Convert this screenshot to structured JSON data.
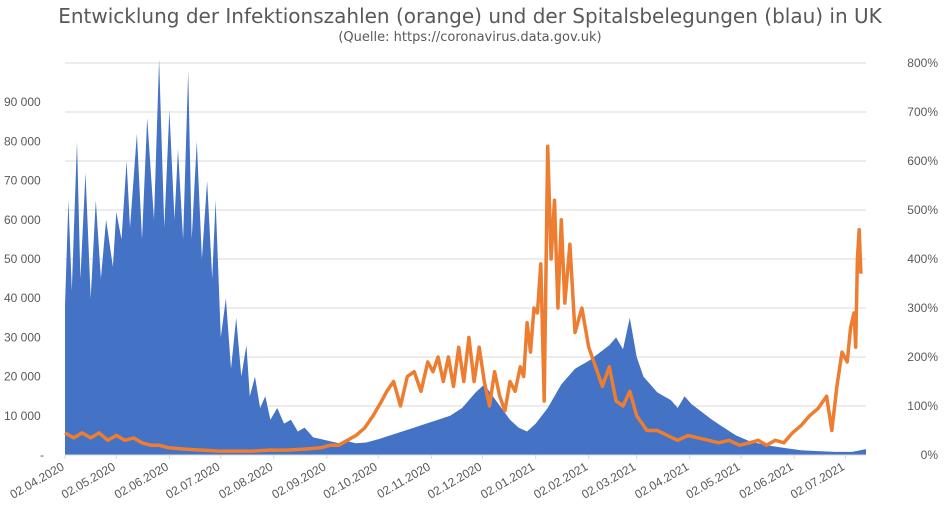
{
  "title": "Entwicklung der Infektionszahlen (orange) und der Spitalsbelegungen (blau) in UK",
  "subtitle": "(Quelle: https://coronavirus.data.gov.uk)",
  "colors": {
    "blue_area": "#4472c4",
    "orange_line": "#ed7d31",
    "grid": "#d9d9d9",
    "text": "#595959"
  },
  "chart_data": {
    "type": "area",
    "grid": true,
    "left_axis": {
      "ylim": [
        0,
        100000
      ],
      "tick_labels": [
        "-",
        "10 000",
        "20 000",
        "30 000",
        "40 000",
        "50 000",
        "60 000",
        "70 000",
        "80 000",
        "90 000"
      ],
      "tick_values": [
        0,
        10000,
        20000,
        30000,
        40000,
        50000,
        60000,
        70000,
        80000,
        90000
      ]
    },
    "right_axis": {
      "ylim": [
        0,
        8
      ],
      "tick_labels": [
        "0%",
        "100%",
        "200%",
        "300%",
        "400%",
        "500%",
        "600%",
        "700%",
        "800%"
      ],
      "tick_values": [
        0,
        1,
        2,
        3,
        4,
        5,
        6,
        7,
        8
      ]
    },
    "x_tick_labels": [
      "02.04.2020",
      "02.05.2020",
      "02.06.2020",
      "02.07.2020",
      "02.08.2020",
      "02.09.2020",
      "02.10.2020",
      "02.11.2020",
      "02.12.2020",
      "02.01.2021",
      "02.02.2021",
      "02.03.2021",
      "02.04.2021",
      "02.05.2021",
      "02.06.2021",
      "02.07.2021"
    ],
    "x_tick_index": [
      0,
      30,
      61,
      91,
      122,
      153,
      183,
      214,
      244,
      275,
      306,
      334,
      365,
      395,
      426,
      456
    ],
    "series": [
      {
        "color": "blue",
        "axis": "left",
        "x_days": [
          0,
          2,
          4,
          7,
          9,
          12,
          15,
          18,
          21,
          24,
          28,
          30,
          33,
          36,
          38,
          42,
          45,
          48,
          52,
          55,
          58,
          61,
          64,
          66,
          69,
          72,
          74,
          77,
          80,
          83,
          86,
          88,
          91,
          94,
          97,
          100,
          103,
          106,
          108,
          111,
          114,
          117,
          120,
          124,
          128,
          132,
          136,
          140,
          145,
          150,
          155,
          160,
          165,
          170,
          176,
          183,
          190,
          197,
          204,
          211,
          218,
          225,
          232,
          240,
          245,
          250,
          255,
          260,
          265,
          270,
          275,
          282,
          290,
          298,
          306,
          312,
          318,
          322,
          326,
          330,
          334,
          338,
          342,
          346,
          350,
          354,
          358,
          362,
          366,
          372,
          378,
          385,
          392,
          400,
          410,
          420,
          430,
          440,
          450,
          460,
          468
        ],
        "values": [
          38000,
          65000,
          42000,
          80000,
          45000,
          72000,
          40000,
          65000,
          45000,
          60000,
          48000,
          62000,
          55000,
          75000,
          58000,
          82000,
          55000,
          86000,
          60000,
          101000,
          58000,
          88000,
          60000,
          78000,
          55000,
          98000,
          55000,
          80000,
          50000,
          70000,
          45000,
          65000,
          30000,
          40000,
          22000,
          35000,
          20000,
          28000,
          15000,
          20000,
          12000,
          15000,
          9000,
          12000,
          8000,
          9000,
          6000,
          7000,
          4500,
          4000,
          3500,
          3000,
          3500,
          3000,
          3200,
          4000,
          5000,
          6000,
          7000,
          8000,
          9000,
          10000,
          12000,
          16000,
          18000,
          15000,
          12000,
          9000,
          7000,
          6000,
          8000,
          12000,
          18000,
          22000,
          24000,
          26000,
          28000,
          30000,
          27000,
          35000,
          25000,
          20000,
          18000,
          16000,
          15000,
          14000,
          12000,
          15000,
          13000,
          11000,
          9000,
          7000,
          5000,
          3500,
          2500,
          1800,
          1200,
          1000,
          800,
          800,
          1500
        ]
      },
      {
        "color": "orange",
        "axis": "right",
        "x_days": [
          0,
          5,
          10,
          15,
          20,
          25,
          30,
          35,
          40,
          45,
          50,
          55,
          60,
          70,
          80,
          90,
          100,
          110,
          120,
          130,
          140,
          150,
          155,
          160,
          165,
          170,
          175,
          180,
          185,
          188,
          192,
          196,
          200,
          204,
          208,
          212,
          215,
          218,
          221,
          224,
          227,
          230,
          233,
          236,
          239,
          242,
          245,
          248,
          251,
          254,
          257,
          260,
          263,
          266,
          268,
          270,
          272,
          274,
          276,
          278,
          280,
          282,
          284,
          286,
          288,
          290,
          292,
          295,
          298,
          302,
          306,
          310,
          314,
          318,
          322,
          326,
          330,
          334,
          340,
          346,
          352,
          358,
          364,
          370,
          376,
          382,
          388,
          394,
          400,
          405,
          410,
          415,
          420,
          425,
          430,
          435,
          440,
          445,
          448,
          451,
          454,
          457,
          459,
          461,
          462,
          463,
          464,
          465
        ],
        "values": [
          0.45,
          0.35,
          0.45,
          0.35,
          0.45,
          0.3,
          0.4,
          0.3,
          0.35,
          0.25,
          0.2,
          0.2,
          0.15,
          0.12,
          0.1,
          0.08,
          0.08,
          0.08,
          0.1,
          0.1,
          0.12,
          0.15,
          0.2,
          0.2,
          0.3,
          0.4,
          0.55,
          0.8,
          1.1,
          1.3,
          1.5,
          1.0,
          1.6,
          1.7,
          1.3,
          1.9,
          1.7,
          2.0,
          1.5,
          2.0,
          1.4,
          2.2,
          1.5,
          2.4,
          1.5,
          2.2,
          1.5,
          1.0,
          1.7,
          1.2,
          0.9,
          1.5,
          1.3,
          1.8,
          1.6,
          2.7,
          2.1,
          3.0,
          2.9,
          3.9,
          1.1,
          6.3,
          4.0,
          5.2,
          3.0,
          4.8,
          3.1,
          4.3,
          2.5,
          3.0,
          2.2,
          1.8,
          1.4,
          1.8,
          1.1,
          1.0,
          1.3,
          0.8,
          0.5,
          0.5,
          0.4,
          0.3,
          0.4,
          0.35,
          0.3,
          0.25,
          0.3,
          0.2,
          0.25,
          0.3,
          0.2,
          0.3,
          0.25,
          0.45,
          0.6,
          0.8,
          0.95,
          1.2,
          0.5,
          1.4,
          2.1,
          1.9,
          2.6,
          2.9,
          2.2,
          4.0,
          4.6,
          3.7
        ]
      }
    ]
  }
}
